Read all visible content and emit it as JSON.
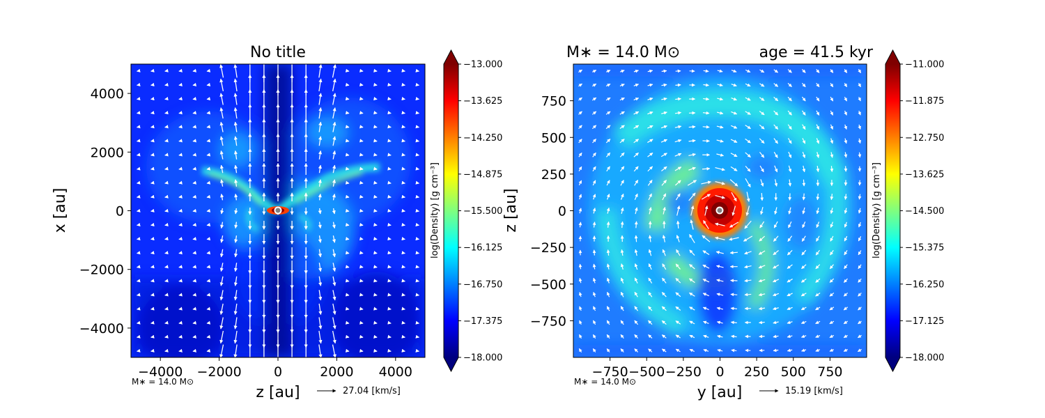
{
  "colormap": [
    "#00007f",
    "#0000ff",
    "#007fff",
    "#00ffff",
    "#7fff7f",
    "#ffff00",
    "#ff7f00",
    "#ff0000",
    "#7f0000"
  ],
  "chart_data": [
    {
      "type": "heatmap",
      "title": "No title",
      "xlabel": "z [au]",
      "ylabel": "x [au]",
      "xlim": [
        -5000,
        5000
      ],
      "ylim": [
        -5000,
        5000
      ],
      "xticks": [
        "−4000",
        "−2000",
        "0",
        "2000",
        "4000"
      ],
      "xtick_values": [
        -4000,
        -2000,
        0,
        2000,
        4000
      ],
      "yticks": [
        "4000",
        "2000",
        "0",
        "−2000",
        "−4000"
      ],
      "ytick_values": [
        4000,
        2000,
        0,
        -2000,
        -4000
      ],
      "colorbar": {
        "label": "log(Density) [g cm⁻³]",
        "range": [
          -18.0,
          -13.0
        ],
        "ticks": [
          "−13.000",
          "−13.625",
          "−14.250",
          "−14.875",
          "−15.500",
          "−16.125",
          "−16.750",
          "−17.375",
          "−18.000"
        ],
        "tick_values": [
          -13.0,
          -13.625,
          -14.25,
          -14.875,
          -15.5,
          -16.125,
          -16.75,
          -17.375,
          -18.0
        ]
      },
      "mass_note": "M∗ = 14.0 M⊙",
      "arrow_key": "27.04 [km/s]",
      "grid": false
    },
    {
      "type": "heatmap",
      "title_left": "M∗ = 14.0 M⊙",
      "title_right": "age = 41.5 kyr",
      "xlabel": "y [au]",
      "ylabel": "z [au]",
      "xlim": [
        -1000,
        1000
      ],
      "ylim": [
        -1000,
        1000
      ],
      "xticks": [
        "−750",
        "−500",
        "−250",
        "0",
        "250",
        "500",
        "750"
      ],
      "xtick_values": [
        -750,
        -500,
        -250,
        0,
        250,
        500,
        750
      ],
      "yticks": [
        "750",
        "500",
        "250",
        "0",
        "−250",
        "−500",
        "−750"
      ],
      "ytick_values": [
        750,
        500,
        250,
        0,
        -250,
        -500,
        -750
      ],
      "colorbar": {
        "label": "log(Density) [g cm⁻³]",
        "range": [
          -18.0,
          -11.0
        ],
        "ticks": [
          "−11.000",
          "−11.875",
          "−12.750",
          "−13.625",
          "−14.500",
          "−15.375",
          "−16.250",
          "−17.125",
          "−18.000"
        ],
        "tick_values": [
          -11.0,
          -11.875,
          -12.75,
          -13.625,
          -14.5,
          -15.375,
          -16.25,
          -17.125,
          -18.0
        ]
      },
      "mass_note": "M∗ = 14.0 M⊙",
      "arrow_key": "15.19 [km/s]",
      "grid": false
    }
  ]
}
